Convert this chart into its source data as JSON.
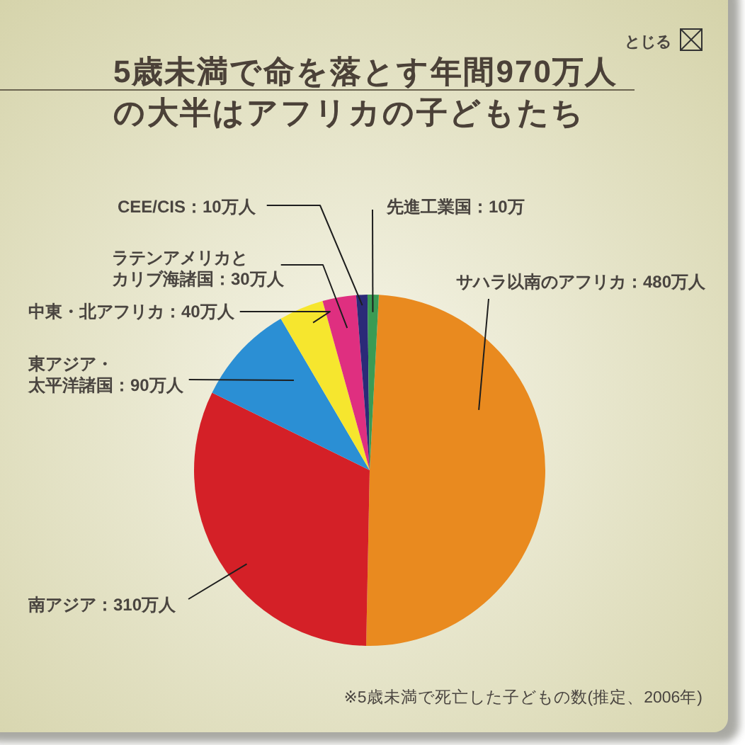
{
  "chart_data": {
    "type": "pie",
    "title": "5歳未満で命を落とす年間970万人の大半はアフリカの子どもたち",
    "categories": [
      "サハラ以南のアフリカ：480万人",
      "南アジア：310万人",
      "東アジア・太平洋諸国：90万人",
      "中東・北アフリカ：40万人",
      "ラテンアメリカとカリブ海諸国：30万人",
      "CEE/CIS：10万人",
      "先進工業国：10万"
    ],
    "values": [
      480,
      310,
      90,
      40,
      30,
      10,
      10
    ],
    "colors": [
      "#e98a1f",
      "#d42027",
      "#2b8fd4",
      "#f6e62e",
      "#df2f80",
      "#2b2a78",
      "#3a9b54"
    ],
    "annotations": [
      "※5歳未満で死亡した子どもの数(推定、2006年)",
      "とじる"
    ]
  }
}
